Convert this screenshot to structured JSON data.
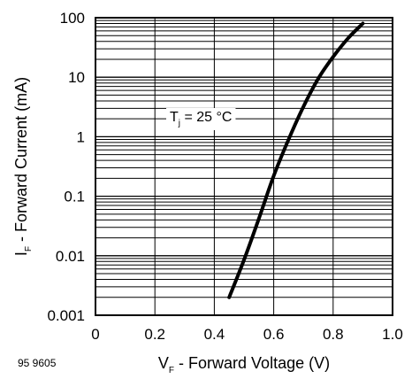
{
  "chart_data": {
    "type": "line",
    "x_scale": "linear",
    "y_scale": "log",
    "xlim": [
      0,
      1.0
    ],
    "ylim": [
      0.001,
      100
    ],
    "x_ticks": [
      "0",
      "0.2",
      "0.4",
      "0.6",
      "0.8",
      "1.0"
    ],
    "y_ticks": [
      "0.001",
      "0.01",
      "0.1",
      "1",
      "10",
      "100"
    ],
    "xlabel": {
      "main": "V",
      "sub": "F",
      "rest": " - Forward Voltage (V)"
    },
    "ylabel": {
      "main": "I",
      "sub": "F",
      "rest": " - Forward Current (mA)"
    },
    "annotation": {
      "main": "T",
      "sub": "j",
      "rest": " = 25 °C"
    },
    "figure_number": "95 9605",
    "grid": true,
    "series": [
      {
        "x": [
          0.45,
          0.5,
          0.55,
          0.6,
          0.65,
          0.7,
          0.75,
          0.8,
          0.85,
          0.9
        ],
        "y": [
          0.002,
          0.0085,
          0.042,
          0.22,
          0.9,
          3.2,
          9.5,
          22,
          45,
          80
        ]
      }
    ]
  }
}
